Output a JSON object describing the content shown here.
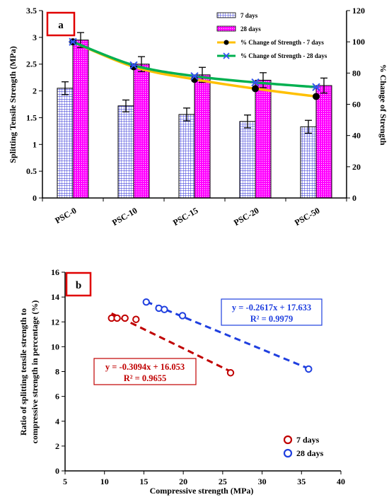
{
  "chart_data": [
    {
      "type": "bar",
      "panel_label": "a",
      "categories": [
        "PSC-0",
        "PSC-10",
        "PSC-15",
        "PSC-20",
        "PSC-50"
      ],
      "ylabel": "Splitting Tensile Strength (MPa)",
      "y2label": "% Change of Strength",
      "ylim": [
        0,
        3.5
      ],
      "y2lim": [
        0,
        120
      ],
      "yticks": [
        "0",
        "0.5",
        "1",
        "1.5",
        "2",
        "2.5",
        "3",
        "3.5"
      ],
      "y2ticks": [
        "0",
        "20",
        "40",
        "60",
        "80",
        "100",
        "120"
      ],
      "legend_position": "top-right",
      "series": [
        {
          "name": "7 days",
          "kind": "bar",
          "values": [
            2.05,
            1.72,
            1.56,
            1.43,
            1.33
          ],
          "errors": [
            0.12,
            0.11,
            0.12,
            0.12,
            0.12
          ],
          "color": "#2b2bd6",
          "pattern": "grid"
        },
        {
          "name": "28 days",
          "kind": "bar",
          "values": [
            2.95,
            2.5,
            2.3,
            2.2,
            2.1
          ],
          "errors": [
            0.14,
            0.14,
            0.14,
            0.14,
            0.14
          ],
          "color": "#ff00ff",
          "pattern": "dots"
        },
        {
          "name": "% Change of Strength - 7 days",
          "kind": "line",
          "axis": "right",
          "values": [
            100,
            84,
            76,
            70,
            65
          ],
          "color": "#ffc000",
          "marker": "circle"
        },
        {
          "name": "% Change of Strength - 28 days",
          "kind": "line",
          "axis": "right",
          "values": [
            100,
            85,
            78,
            74,
            71
          ],
          "color": "#00b050",
          "marker": "x"
        }
      ]
    },
    {
      "type": "scatter",
      "panel_label": "b",
      "xlabel": "Compressive strength (MPa)",
      "ylabel_lines": [
        "Ratio of splitting tensile strength to",
        "compressive strength in percentage (%)"
      ],
      "xlim": [
        5,
        40
      ],
      "ylim": [
        0,
        16
      ],
      "xticks": [
        "5",
        "10",
        "15",
        "20",
        "25",
        "30",
        "35",
        "40"
      ],
      "yticks": [
        "0",
        "2",
        "4",
        "6",
        "8",
        "10",
        "12",
        "14",
        "16"
      ],
      "legend_position": "bottom-right",
      "series": [
        {
          "name": "7 days",
          "color": "#c00000",
          "points": [
            [
              10.9,
              12.3
            ],
            [
              11.6,
              12.3
            ],
            [
              12.6,
              12.3
            ],
            [
              14.0,
              12.2
            ],
            [
              26.0,
              7.9
            ]
          ],
          "trend": {
            "slope": -0.3094,
            "intercept": 16.053,
            "x_range": [
              10.9,
              26.0
            ]
          },
          "equation": "y = -0.3094x + 16.053",
          "r2": "R² = 0.9655"
        },
        {
          "name": "28 days",
          "color": "#1f3fdf",
          "points": [
            [
              15.3,
              13.6
            ],
            [
              16.9,
              13.1
            ],
            [
              17.6,
              13.0
            ],
            [
              19.9,
              12.5
            ],
            [
              35.9,
              8.2
            ]
          ],
          "trend": {
            "slope": -0.2617,
            "intercept": 17.633,
            "x_range": [
              15.3,
              35.9
            ]
          },
          "equation": "y = -0.2617x + 17.633",
          "r2": "R² = 0.9979"
        }
      ]
    }
  ]
}
